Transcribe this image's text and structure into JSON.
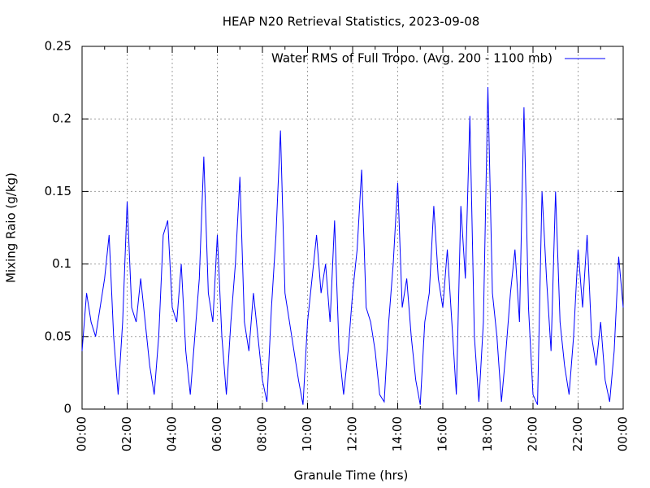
{
  "chart_data": {
    "type": "line",
    "title": "HEAP N20 Retrieval Statistics, 2023-09-08",
    "xlabel": "Granule Time (hrs)",
    "ylabel": "Mixing Raio (g/kg)",
    "legend": "upper right",
    "grid": true,
    "xlim": [
      0,
      24
    ],
    "ylim": [
      0,
      0.25
    ],
    "xticks": [
      {
        "value": 0,
        "label": "00:00"
      },
      {
        "value": 2,
        "label": "02:00"
      },
      {
        "value": 4,
        "label": "04:00"
      },
      {
        "value": 6,
        "label": "06:00"
      },
      {
        "value": 8,
        "label": "08:00"
      },
      {
        "value": 10,
        "label": "10:00"
      },
      {
        "value": 12,
        "label": "12:00"
      },
      {
        "value": 14,
        "label": "14:00"
      },
      {
        "value": 16,
        "label": "16:00"
      },
      {
        "value": 18,
        "label": "18:00"
      },
      {
        "value": 20,
        "label": "20:00"
      },
      {
        "value": 22,
        "label": "22:00"
      },
      {
        "value": 24,
        "label": "00:00"
      }
    ],
    "yticks": [
      0,
      0.05,
      0.1,
      0.15,
      0.2,
      0.25
    ],
    "x": [
      0,
      0.2,
      0.4,
      0.6,
      0.8,
      1,
      1.2,
      1.4,
      1.6,
      1.8,
      2,
      2.2,
      2.4,
      2.6,
      2.8,
      3,
      3.2,
      3.4,
      3.6,
      3.8,
      4,
      4.2,
      4.4,
      4.6,
      4.8,
      5,
      5.2,
      5.4,
      5.6,
      5.8,
      6,
      6.2,
      6.4,
      6.6,
      6.8,
      7,
      7.2,
      7.4,
      7.6,
      7.8,
      8,
      8.2,
      8.4,
      8.6,
      8.8,
      9,
      9.2,
      9.4,
      9.6,
      9.8,
      10,
      10.2,
      10.4,
      10.6,
      10.8,
      11,
      11.2,
      11.4,
      11.6,
      11.8,
      12,
      12.2,
      12.4,
      12.6,
      12.8,
      13,
      13.2,
      13.4,
      13.6,
      13.8,
      14,
      14.2,
      14.4,
      14.6,
      14.8,
      15,
      15.2,
      15.4,
      15.6,
      15.8,
      16,
      16.2,
      16.4,
      16.6,
      16.8,
      17,
      17.2,
      17.4,
      17.6,
      17.8,
      18,
      18.2,
      18.4,
      18.6,
      18.8,
      19,
      19.2,
      19.4,
      19.6,
      19.8,
      20,
      20.2,
      20.4,
      20.6,
      20.8,
      21,
      21.2,
      21.4,
      21.6,
      21.8,
      22,
      22.2,
      22.4,
      22.6,
      22.8,
      23,
      23.2,
      23.4,
      23.6,
      23.8,
      24
    ],
    "series": [
      {
        "name": "Water RMS of Full Tropo. (Avg. 200 - 1100 mb)",
        "color": "#0000ff",
        "values": [
          0.04,
          0.08,
          0.06,
          0.05,
          0.07,
          0.09,
          0.12,
          0.05,
          0.01,
          0.06,
          0.143,
          0.07,
          0.06,
          0.09,
          0.06,
          0.03,
          0.01,
          0.05,
          0.12,
          0.13,
          0.07,
          0.06,
          0.1,
          0.04,
          0.01,
          0.05,
          0.09,
          0.174,
          0.08,
          0.06,
          0.12,
          0.05,
          0.01,
          0.06,
          0.1,
          0.16,
          0.06,
          0.04,
          0.08,
          0.05,
          0.02,
          0.005,
          0.07,
          0.12,
          0.192,
          0.08,
          0.06,
          0.04,
          0.02,
          0.003,
          0.06,
          0.09,
          0.12,
          0.08,
          0.1,
          0.06,
          0.13,
          0.04,
          0.01,
          0.04,
          0.08,
          0.11,
          0.165,
          0.07,
          0.06,
          0.04,
          0.01,
          0.005,
          0.06,
          0.1,
          0.156,
          0.07,
          0.09,
          0.05,
          0.02,
          0.003,
          0.06,
          0.08,
          0.14,
          0.09,
          0.07,
          0.11,
          0.06,
          0.01,
          0.14,
          0.09,
          0.202,
          0.05,
          0.005,
          0.06,
          0.222,
          0.08,
          0.05,
          0.005,
          0.04,
          0.08,
          0.11,
          0.06,
          0.208,
          0.07,
          0.01,
          0.003,
          0.15,
          0.09,
          0.04,
          0.15,
          0.06,
          0.03,
          0.01,
          0.05,
          0.11,
          0.07,
          0.12,
          0.05,
          0.03,
          0.06,
          0.02,
          0.005,
          0.04,
          0.105,
          0.07
        ]
      }
    ]
  }
}
